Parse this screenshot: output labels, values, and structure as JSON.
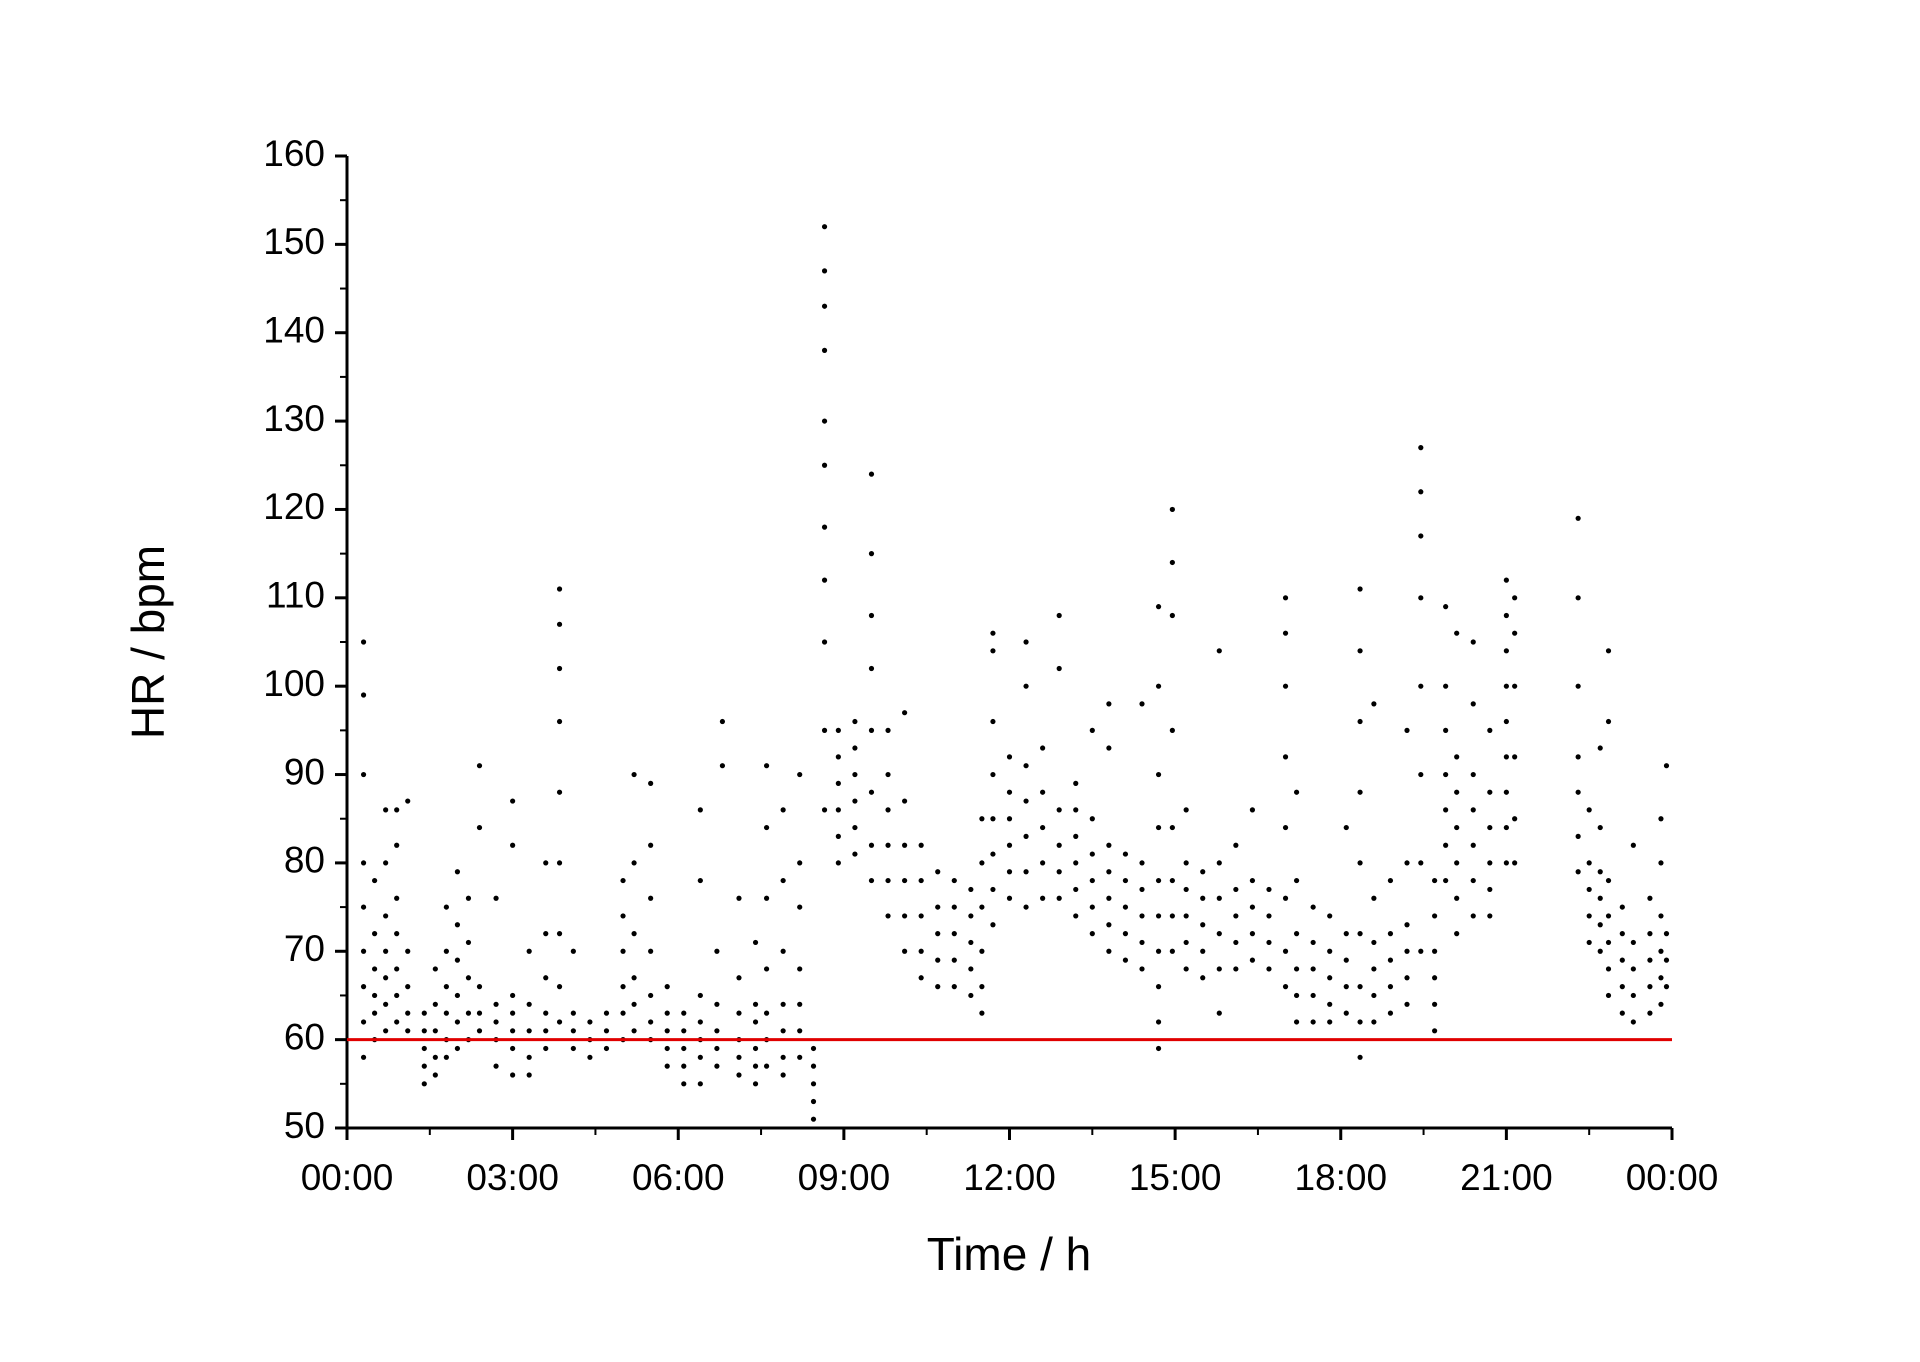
{
  "chart_data": {
    "type": "scatter",
    "x_label": "Time / h",
    "y_label": "HR / bpm",
    "color": "#000000",
    "xlim": [
      0,
      24
    ],
    "ylim": [
      50,
      160
    ],
    "xticks": [
      {
        "value": 0,
        "label": "00:00"
      },
      {
        "value": 3,
        "label": "03:00"
      },
      {
        "value": 6,
        "label": "06:00"
      },
      {
        "value": 9,
        "label": "09:00"
      },
      {
        "value": 12,
        "label": "12:00"
      },
      {
        "value": 15,
        "label": "15:00"
      },
      {
        "value": 18,
        "label": "18:00"
      },
      {
        "value": 21,
        "label": "21:00"
      },
      {
        "value": 24,
        "label": "00:00"
      }
    ],
    "yticks": [
      50,
      60,
      70,
      80,
      90,
      100,
      110,
      120,
      130,
      140,
      150,
      160
    ],
    "reference_line": {
      "value": 60,
      "color": "#e00000"
    },
    "x": [
      0.3,
      0.3,
      0.3,
      0.3,
      0.3,
      0.3,
      0.3,
      0.3,
      0.3,
      0.5,
      0.5,
      0.5,
      0.5,
      0.5,
      0.5,
      0.7,
      0.7,
      0.7,
      0.7,
      0.7,
      0.7,
      0.7,
      0.9,
      0.9,
      0.9,
      0.9,
      0.9,
      0.9,
      0.9,
      1.1,
      1.1,
      1.1,
      1.1,
      1.1,
      1.4,
      1.4,
      1.4,
      1.4,
      1.4,
      1.6,
      1.6,
      1.6,
      1.6,
      1.6,
      1.8,
      1.8,
      1.8,
      1.8,
      1.8,
      1.8,
      2.0,
      2.0,
      2.0,
      2.0,
      2.0,
      2.0,
      2.2,
      2.2,
      2.2,
      2.2,
      2.2,
      2.4,
      2.4,
      2.4,
      2.4,
      2.4,
      2.7,
      2.7,
      2.7,
      2.7,
      2.7,
      3.0,
      3.0,
      3.0,
      3.0,
      3.0,
      3.0,
      3.0,
      3.3,
      3.3,
      3.3,
      3.3,
      3.3,
      3.6,
      3.6,
      3.6,
      3.6,
      3.6,
      3.6,
      3.85,
      3.85,
      3.85,
      3.85,
      3.85,
      3.85,
      3.85,
      3.85,
      3.85,
      4.1,
      4.1,
      4.1,
      4.1,
      4.4,
      4.4,
      4.4,
      4.7,
      4.7,
      4.7,
      5.0,
      5.0,
      5.0,
      5.0,
      5.0,
      5.0,
      5.2,
      5.2,
      5.2,
      5.2,
      5.2,
      5.2,
      5.5,
      5.5,
      5.5,
      5.5,
      5.5,
      5.5,
      5.5,
      5.8,
      5.8,
      5.8,
      5.8,
      5.8,
      6.1,
      6.1,
      6.1,
      6.1,
      6.1,
      6.4,
      6.4,
      6.4,
      6.4,
      6.4,
      6.4,
      6.4,
      6.7,
      6.7,
      6.7,
      6.7,
      6.7,
      6.8,
      6.8,
      7.1,
      7.1,
      7.1,
      7.1,
      7.1,
      7.1,
      7.4,
      7.4,
      7.4,
      7.4,
      7.4,
      7.4,
      7.6,
      7.6,
      7.6,
      7.6,
      7.6,
      7.6,
      7.6,
      7.9,
      7.9,
      7.9,
      7.9,
      7.9,
      7.9,
      7.9,
      8.2,
      8.2,
      8.2,
      8.2,
      8.2,
      8.2,
      8.2,
      8.45,
      8.45,
      8.45,
      8.45,
      8.45,
      8.65,
      8.65,
      8.65,
      8.65,
      8.65,
      8.65,
      8.65,
      8.65,
      8.65,
      8.65,
      8.65,
      8.9,
      8.9,
      8.9,
      8.9,
      8.9,
      8.9,
      9.2,
      9.2,
      9.2,
      9.2,
      9.2,
      9.2,
      9.5,
      9.5,
      9.5,
      9.5,
      9.5,
      9.5,
      9.5,
      9.5,
      9.8,
      9.8,
      9.8,
      9.8,
      9.8,
      9.8,
      10.1,
      10.1,
      10.1,
      10.1,
      10.1,
      10.1,
      10.4,
      10.4,
      10.4,
      10.4,
      10.4,
      10.7,
      10.7,
      10.7,
      10.7,
      10.7,
      11.0,
      11.0,
      11.0,
      11.0,
      11.0,
      11.3,
      11.3,
      11.3,
      11.3,
      11.3,
      11.5,
      11.5,
      11.5,
      11.5,
      11.5,
      11.5,
      11.7,
      11.7,
      11.7,
      11.7,
      11.7,
      11.7,
      11.7,
      11.7,
      12.0,
      12.0,
      12.0,
      12.0,
      12.0,
      12.0,
      12.3,
      12.3,
      12.3,
      12.3,
      12.3,
      12.3,
      12.3,
      12.6,
      12.6,
      12.6,
      12.6,
      12.6,
      12.9,
      12.9,
      12.9,
      12.9,
      12.9,
      12.9,
      13.2,
      13.2,
      13.2,
      13.2,
      13.2,
      13.2,
      13.5,
      13.5,
      13.5,
      13.5,
      13.5,
      13.5,
      13.8,
      13.8,
      13.8,
      13.8,
      13.8,
      13.8,
      13.8,
      14.1,
      14.1,
      14.1,
      14.1,
      14.1,
      14.4,
      14.4,
      14.4,
      14.4,
      14.4,
      14.4,
      14.7,
      14.7,
      14.7,
      14.7,
      14.7,
      14.7,
      14.7,
      14.7,
      14.7,
      14.7,
      14.95,
      14.95,
      14.95,
      14.95,
      14.95,
      14.95,
      14.95,
      14.95,
      15.2,
      15.2,
      15.2,
      15.2,
      15.2,
      15.2,
      15.5,
      15.5,
      15.5,
      15.5,
      15.5,
      15.8,
      15.8,
      15.8,
      15.8,
      15.8,
      15.8,
      16.1,
      16.1,
      16.1,
      16.1,
      16.1,
      16.4,
      16.4,
      16.4,
      16.4,
      16.4,
      16.7,
      16.7,
      16.7,
      16.7,
      17.0,
      17.0,
      17.0,
      17.0,
      17.0,
      17.0,
      17.0,
      17.0,
      17.2,
      17.2,
      17.2,
      17.2,
      17.2,
      17.2,
      17.5,
      17.5,
      17.5,
      17.5,
      17.5,
      17.8,
      17.8,
      17.8,
      17.8,
      17.8,
      18.1,
      18.1,
      18.1,
      18.1,
      18.1,
      18.35,
      18.35,
      18.35,
      18.35,
      18.35,
      18.35,
      18.35,
      18.35,
      18.35,
      18.6,
      18.6,
      18.6,
      18.6,
      18.6,
      18.6,
      18.9,
      18.9,
      18.9,
      18.9,
      18.9,
      19.2,
      19.2,
      19.2,
      19.2,
      19.2,
      19.2,
      19.45,
      19.45,
      19.45,
      19.45,
      19.45,
      19.45,
      19.45,
      19.45,
      19.7,
      19.7,
      19.7,
      19.7,
      19.7,
      19.7,
      19.9,
      19.9,
      19.9,
      19.9,
      19.9,
      19.9,
      19.9,
      20.1,
      20.1,
      20.1,
      20.1,
      20.1,
      20.1,
      20.1,
      20.4,
      20.4,
      20.4,
      20.4,
      20.4,
      20.4,
      20.4,
      20.7,
      20.7,
      20.7,
      20.7,
      20.7,
      20.7,
      21.0,
      21.0,
      21.0,
      21.0,
      21.0,
      21.0,
      21.0,
      21.0,
      21.0,
      21.15,
      21.15,
      21.15,
      21.15,
      21.15,
      21.15,
      22.3,
      22.3,
      22.3,
      22.3,
      22.3,
      22.3,
      22.3,
      22.5,
      22.5,
      22.5,
      22.5,
      22.5,
      22.7,
      22.7,
      22.7,
      22.7,
      22.7,
      22.7,
      22.85,
      22.85,
      22.85,
      22.85,
      22.85,
      22.85,
      22.85,
      23.1,
      23.1,
      23.1,
      23.1,
      23.1,
      23.3,
      23.3,
      23.3,
      23.3,
      23.3,
      23.6,
      23.6,
      23.6,
      23.6,
      23.6,
      23.8,
      23.8,
      23.8,
      23.8,
      23.8,
      23.8,
      23.9,
      23.9,
      23.9,
      23.9
    ],
    "values": [
      58,
      62,
      66,
      70,
      75,
      80,
      90,
      99,
      105,
      60,
      63,
      65,
      68,
      72,
      78,
      61,
      64,
      67,
      70,
      74,
      80,
      86,
      62,
      65,
      68,
      72,
      76,
      82,
      86,
      61,
      63,
      66,
      70,
      87,
      55,
      57,
      59,
      61,
      63,
      56,
      58,
      61,
      64,
      68,
      58,
      60,
      63,
      66,
      70,
      75,
      59,
      62,
      65,
      69,
      73,
      79,
      60,
      63,
      67,
      71,
      76,
      61,
      63,
      66,
      84,
      91,
      57,
      60,
      62,
      64,
      76,
      56,
      59,
      61,
      63,
      65,
      82,
      87,
      56,
      58,
      61,
      64,
      70,
      59,
      61,
      63,
      67,
      72,
      80,
      62,
      66,
      72,
      80,
      88,
      96,
      102,
      107,
      111,
      59,
      61,
      63,
      70,
      58,
      60,
      62,
      59,
      61,
      63,
      60,
      63,
      66,
      70,
      74,
      78,
      61,
      64,
      67,
      72,
      80,
      90,
      60,
      62,
      65,
      70,
      76,
      82,
      89,
      57,
      59,
      61,
      63,
      66,
      55,
      57,
      59,
      61,
      63,
      55,
      58,
      60,
      62,
      65,
      78,
      86,
      57,
      59,
      61,
      64,
      70,
      91,
      96,
      56,
      58,
      60,
      63,
      67,
      76,
      55,
      57,
      59,
      62,
      64,
      71,
      57,
      60,
      63,
      68,
      76,
      84,
      91,
      56,
      58,
      61,
      64,
      70,
      78,
      86,
      58,
      61,
      64,
      68,
      75,
      80,
      90,
      51,
      53,
      55,
      57,
      59,
      86,
      95,
      105,
      112,
      118,
      125,
      130,
      138,
      143,
      147,
      152,
      80,
      83,
      86,
      89,
      92,
      95,
      81,
      84,
      87,
      90,
      93,
      96,
      78,
      82,
      88,
      95,
      102,
      108,
      115,
      124,
      74,
      78,
      82,
      86,
      90,
      95,
      70,
      74,
      78,
      82,
      87,
      97,
      67,
      70,
      74,
      78,
      82,
      66,
      69,
      72,
      75,
      79,
      66,
      69,
      72,
      75,
      78,
      65,
      68,
      71,
      74,
      77,
      63,
      66,
      70,
      75,
      80,
      85,
      73,
      77,
      81,
      85,
      90,
      96,
      104,
      106,
      76,
      79,
      82,
      85,
      88,
      92,
      75,
      79,
      83,
      87,
      91,
      100,
      105,
      76,
      80,
      84,
      88,
      93,
      76,
      79,
      82,
      86,
      102,
      108,
      74,
      77,
      80,
      83,
      86,
      89,
      72,
      75,
      78,
      81,
      85,
      95,
      70,
      73,
      76,
      79,
      82,
      93,
      98,
      69,
      72,
      75,
      78,
      81,
      68,
      71,
      74,
      77,
      80,
      98,
      59,
      62,
      66,
      70,
      74,
      78,
      84,
      90,
      100,
      109,
      70,
      74,
      78,
      84,
      95,
      108,
      114,
      120,
      68,
      71,
      74,
      77,
      80,
      86,
      67,
      70,
      73,
      76,
      79,
      63,
      68,
      72,
      76,
      80,
      104,
      68,
      71,
      74,
      77,
      82,
      69,
      72,
      75,
      78,
      86,
      68,
      71,
      74,
      77,
      66,
      70,
      76,
      84,
      92,
      100,
      106,
      110,
      62,
      65,
      68,
      72,
      78,
      88,
      62,
      65,
      68,
      71,
      75,
      62,
      64,
      67,
      70,
      74,
      63,
      66,
      69,
      72,
      84,
      58,
      62,
      66,
      72,
      80,
      88,
      96,
      104,
      111,
      62,
      65,
      68,
      71,
      76,
      98,
      63,
      66,
      69,
      72,
      78,
      64,
      67,
      70,
      73,
      80,
      95,
      70,
      80,
      90,
      100,
      110,
      117,
      122,
      127,
      61,
      64,
      67,
      70,
      74,
      78,
      78,
      82,
      86,
      90,
      95,
      100,
      109,
      72,
      76,
      80,
      84,
      88,
      92,
      106,
      74,
      78,
      82,
      86,
      90,
      98,
      105,
      74,
      77,
      80,
      84,
      88,
      95,
      80,
      84,
      88,
      92,
      96,
      100,
      104,
      108,
      112,
      80,
      85,
      92,
      100,
      106,
      110,
      79,
      83,
      88,
      92,
      100,
      110,
      119,
      71,
      74,
      77,
      80,
      86,
      70,
      73,
      76,
      79,
      84,
      93,
      65,
      68,
      71,
      74,
      78,
      96,
      104,
      63,
      66,
      69,
      72,
      75,
      62,
      65,
      68,
      71,
      82,
      63,
      66,
      69,
      72,
      76,
      64,
      67,
      70,
      74,
      80,
      85,
      66,
      69,
      72,
      91
    ]
  }
}
